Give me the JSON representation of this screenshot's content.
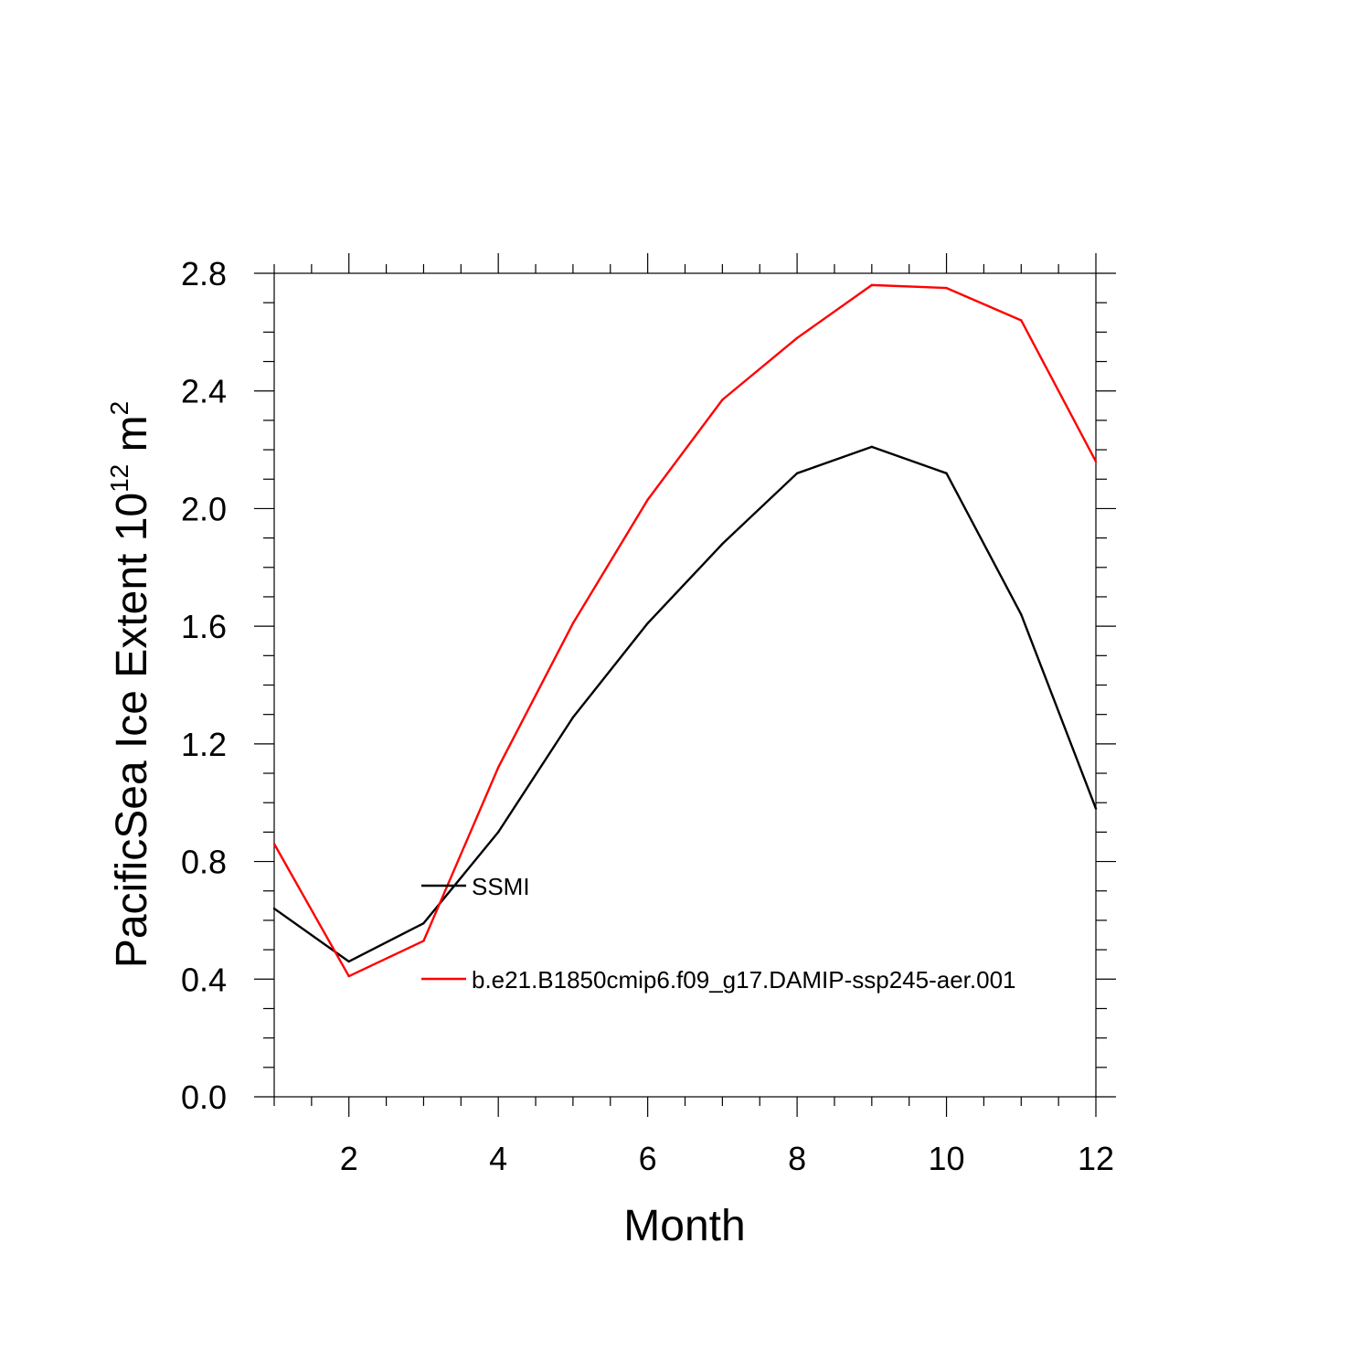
{
  "chart_data": {
    "type": "line",
    "xlabel": "Month",
    "ylabel": {
      "prefix": "PacificSea Ice Extent 10",
      "sup1": "12",
      "mid": " m",
      "sup2": "2"
    },
    "xlim": [
      1,
      12
    ],
    "ylim": [
      0.0,
      2.8
    ],
    "x_ticks": [
      2,
      4,
      6,
      8,
      10,
      12
    ],
    "y_ticks": [
      "0.0",
      "0.4",
      "0.8",
      "1.2",
      "1.6",
      "2.0",
      "2.4",
      "2.8"
    ],
    "grid": false,
    "legend_placement": "center-left inside plot",
    "x": [
      1,
      2,
      3,
      4,
      5,
      6,
      7,
      8,
      9,
      10,
      11,
      12
    ],
    "series": [
      {
        "name": "SSMI",
        "color": "#000000",
        "values": [
          0.64,
          0.46,
          0.59,
          0.9,
          1.29,
          1.61,
          1.88,
          2.12,
          2.21,
          2.12,
          1.64,
          0.98
        ]
      },
      {
        "name": "b.e21.B1850cmip6.f09_g17.DAMIP-ssp245-aer.001",
        "color": "#ff0000",
        "values": [
          0.86,
          0.41,
          0.53,
          1.12,
          1.61,
          2.03,
          2.37,
          2.58,
          2.76,
          2.75,
          2.64,
          2.16
        ]
      }
    ]
  }
}
